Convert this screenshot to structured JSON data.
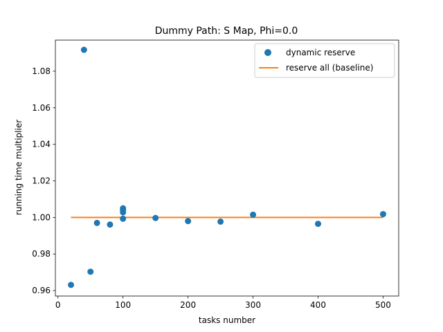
{
  "chart_data": {
    "type": "scatter",
    "title": "Dummy Path: S Map, Phi=0.0",
    "xlabel": "tasks number",
    "ylabel": "running time multiplier",
    "xlim": [
      -4,
      524
    ],
    "ylim": [
      0.957,
      1.097
    ],
    "xticks": [
      0,
      100,
      200,
      300,
      400,
      500
    ],
    "xtick_labels": [
      "0",
      "100",
      "200",
      "300",
      "400",
      "500"
    ],
    "yticks": [
      0.96,
      0.98,
      1.0,
      1.02,
      1.04,
      1.06,
      1.08
    ],
    "ytick_labels": [
      "0.96",
      "0.98",
      "1.00",
      "1.02",
      "1.04",
      "1.06",
      "1.08"
    ],
    "legend_position": "top-right",
    "series": [
      {
        "name": "dynamic reserve",
        "kind": "scatter",
        "color": "#1f77b4",
        "x": [
          20,
          40,
          50,
          60,
          80,
          100,
          100,
          100,
          100,
          150,
          200,
          250,
          300,
          400,
          500
        ],
        "y": [
          0.9631,
          1.0917,
          0.9703,
          0.997,
          0.9961,
          1.005,
          1.004,
          1.0028,
          0.9993,
          0.9997,
          0.998,
          0.9977,
          1.0015,
          0.9965,
          1.0018
        ]
      },
      {
        "name": "reserve all (baseline)",
        "kind": "line",
        "color": "#ff7f0e",
        "x": [
          20,
          500
        ],
        "y": [
          1.0,
          1.0
        ]
      }
    ]
  }
}
